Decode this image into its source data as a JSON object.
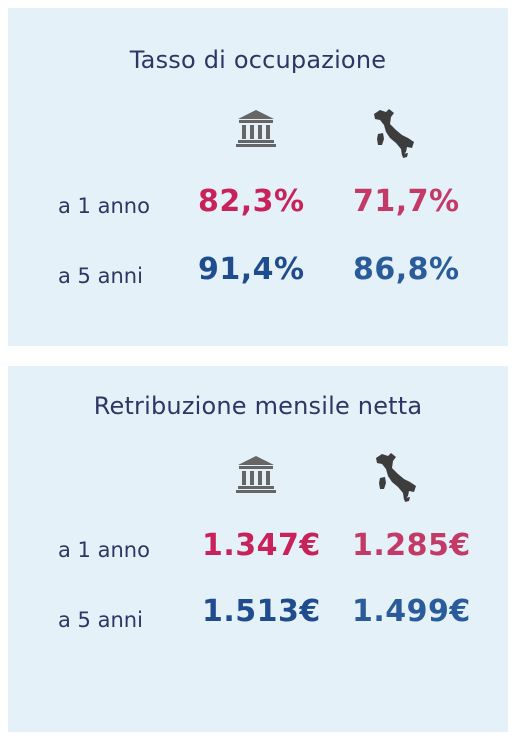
{
  "employment": {
    "title": "Tasso di occupazione",
    "icons": [
      "university-building-icon",
      "italy-map-icon"
    ],
    "rows": [
      {
        "label": "a 1 anno",
        "university": "82,3%",
        "italy": "71,7%"
      },
      {
        "label": "a 5 anni",
        "university": "91,4%",
        "italy": "86,8%"
      }
    ]
  },
  "salary": {
    "title": "Retribuzione mensile netta",
    "icons": [
      "university-building-icon",
      "italy-map-icon"
    ],
    "rows": [
      {
        "label": "a 1 anno",
        "university": "1.347€",
        "italy": "1.285€"
      },
      {
        "label": "a 5 anni",
        "university": "1.513€",
        "italy": "1.499€"
      }
    ]
  },
  "colors": {
    "card_background": "#e4f1f9",
    "label_text": "#2f3566",
    "one_year_accent": "#c9225a",
    "five_year_accent": "#1f4b8f",
    "icon_gray": "#666666"
  }
}
